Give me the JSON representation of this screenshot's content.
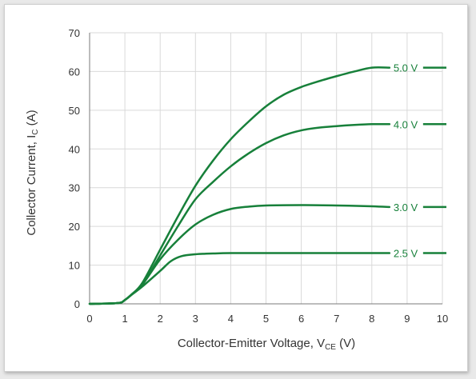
{
  "chart_data": {
    "type": "line",
    "xlabel": "Collector-Emitter Voltage, V",
    "xlabel_sub": "CE",
    "xlabel_suffix": " (V)",
    "ylabel": "Collector Current, I",
    "ylabel_sub": "C",
    "ylabel_suffix": " (A)",
    "xlim": [
      0,
      10
    ],
    "ylim": [
      0,
      70
    ],
    "xticks": [
      0,
      1,
      2,
      3,
      4,
      5,
      6,
      7,
      8,
      9,
      10
    ],
    "yticks": [
      0,
      10,
      20,
      30,
      40,
      50,
      60,
      70
    ],
    "grid": true,
    "series": [
      {
        "name": "5.0 V",
        "x": [
          0,
          0.8,
          1.0,
          1.2,
          1.5,
          2.0,
          2.5,
          3.0,
          3.5,
          4.0,
          4.5,
          5.0,
          5.5,
          6.0,
          6.5,
          7.0,
          7.5,
          8.0,
          8.5
        ],
        "y": [
          0,
          0.2,
          1.0,
          2.5,
          5.5,
          14.0,
          22.5,
          30.5,
          37.0,
          42.5,
          47.0,
          51.0,
          54.0,
          56.0,
          57.5,
          58.8,
          60.0,
          61.0,
          61.0
        ]
      },
      {
        "name": "4.0 V",
        "x": [
          0,
          0.8,
          1.0,
          1.2,
          1.5,
          2.0,
          2.5,
          3.0,
          3.5,
          4.0,
          4.5,
          5.0,
          5.5,
          6.0,
          6.5,
          7.0,
          7.5,
          8.0,
          8.5
        ],
        "y": [
          0,
          0.2,
          1.0,
          2.5,
          5.0,
          12.5,
          20.0,
          27.0,
          31.5,
          35.5,
          38.8,
          41.5,
          43.5,
          44.8,
          45.5,
          45.9,
          46.2,
          46.4,
          46.4
        ]
      },
      {
        "name": "3.0 V",
        "x": [
          0,
          0.8,
          1.0,
          1.2,
          1.5,
          2.0,
          2.5,
          3.0,
          3.5,
          4.0,
          4.5,
          5.0,
          6.0,
          7.0,
          8.0,
          8.5
        ],
        "y": [
          0,
          0.2,
          1.0,
          2.5,
          5.0,
          11.5,
          16.5,
          20.5,
          23.0,
          24.5,
          25.1,
          25.4,
          25.5,
          25.4,
          25.2,
          25.0
        ]
      },
      {
        "name": "2.5 V",
        "x": [
          0,
          0.8,
          1.0,
          1.2,
          1.5,
          2.0,
          2.3,
          2.6,
          3.0,
          3.5,
          4.0,
          5.0,
          6.0,
          7.0,
          8.0,
          8.5
        ],
        "y": [
          0,
          0.2,
          1.0,
          2.4,
          4.5,
          8.5,
          11.0,
          12.3,
          12.8,
          13.0,
          13.1,
          13.1,
          13.1,
          13.1,
          13.1,
          13.1
        ]
      }
    ],
    "colors": {
      "curve": "#17803a",
      "grid": "#d9d9d9",
      "axis": "#7a7a7a",
      "text": "#333333"
    }
  }
}
